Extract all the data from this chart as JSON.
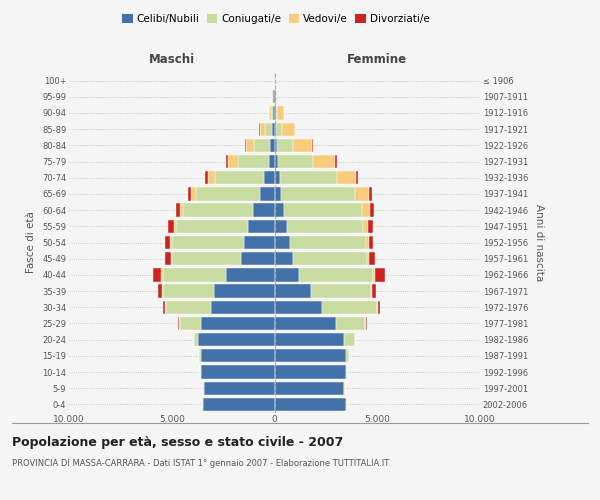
{
  "age_groups": [
    "0-4",
    "5-9",
    "10-14",
    "15-19",
    "20-24",
    "25-29",
    "30-34",
    "35-39",
    "40-44",
    "45-49",
    "50-54",
    "55-59",
    "60-64",
    "65-69",
    "70-74",
    "75-79",
    "80-84",
    "85-89",
    "90-94",
    "95-99",
    "100+"
  ],
  "birth_years": [
    "2002-2006",
    "1997-2001",
    "1992-1996",
    "1987-1991",
    "1982-1986",
    "1977-1981",
    "1972-1976",
    "1967-1971",
    "1962-1966",
    "1957-1961",
    "1952-1956",
    "1947-1951",
    "1942-1946",
    "1937-1941",
    "1932-1936",
    "1927-1931",
    "1922-1926",
    "1917-1921",
    "1912-1916",
    "1907-1911",
    "≤ 1906"
  ],
  "colors": {
    "celibi": "#4472a8",
    "coniugati": "#c8dba0",
    "vedovi": "#f8cc7a",
    "divorziati": "#cc2222"
  },
  "males": {
    "celibi": [
      3500,
      3450,
      3600,
      3600,
      3700,
      3600,
      3100,
      2950,
      2350,
      1650,
      1500,
      1300,
      1050,
      700,
      500,
      280,
      200,
      120,
      80,
      60,
      30
    ],
    "coniugati": [
      5,
      5,
      10,
      50,
      200,
      1000,
      2200,
      2500,
      3100,
      3350,
      3500,
      3500,
      3400,
      3100,
      2400,
      1500,
      800,
      350,
      90,
      30,
      10
    ],
    "vedovi": [
      2,
      2,
      2,
      5,
      10,
      30,
      20,
      30,
      50,
      60,
      80,
      100,
      150,
      250,
      350,
      500,
      400,
      250,
      100,
      20,
      5
    ],
    "divorziati": [
      2,
      2,
      2,
      5,
      20,
      50,
      120,
      180,
      400,
      250,
      250,
      280,
      200,
      150,
      150,
      100,
      30,
      15,
      10,
      5,
      2
    ]
  },
  "females": {
    "celibi": [
      3500,
      3400,
      3500,
      3500,
      3400,
      3000,
      2300,
      1800,
      1200,
      900,
      750,
      600,
      450,
      300,
      250,
      150,
      120,
      80,
      60,
      50,
      30
    ],
    "coniugati": [
      5,
      5,
      20,
      120,
      500,
      1400,
      2700,
      2900,
      3600,
      3600,
      3700,
      3700,
      3800,
      3600,
      2800,
      1700,
      800,
      300,
      80,
      20,
      5
    ],
    "vedovi": [
      2,
      2,
      5,
      10,
      20,
      50,
      30,
      50,
      80,
      100,
      150,
      250,
      400,
      700,
      900,
      1100,
      900,
      600,
      300,
      60,
      10
    ],
    "divorziati": [
      2,
      2,
      2,
      5,
      15,
      50,
      100,
      200,
      500,
      300,
      200,
      250,
      180,
      130,
      130,
      80,
      30,
      15,
      10,
      5,
      2
    ]
  },
  "xlim": 10000,
  "xticks": [
    -10000,
    -5000,
    0,
    5000,
    10000
  ],
  "xtick_labels": [
    "10.000",
    "5.000",
    "0",
    "5.000",
    "10.000"
  ],
  "title": "Popolazione per età, sesso e stato civile - 2007",
  "subtitle": "PROVINCIA DI MASSA-CARRARA - Dati ISTAT 1° gennaio 2007 - Elaborazione TUTTITALIA.IT",
  "ylabel_left": "Fasce di età",
  "ylabel_right": "Anni di nascita",
  "header_left": "Maschi",
  "header_right": "Femmine",
  "legend_labels": [
    "Celibi/Nubili",
    "Coniugati/e",
    "Vedovi/e",
    "Divorziati/e"
  ],
  "bg_color": "#f5f5f5",
  "plot_bg": "#f5f5f5"
}
